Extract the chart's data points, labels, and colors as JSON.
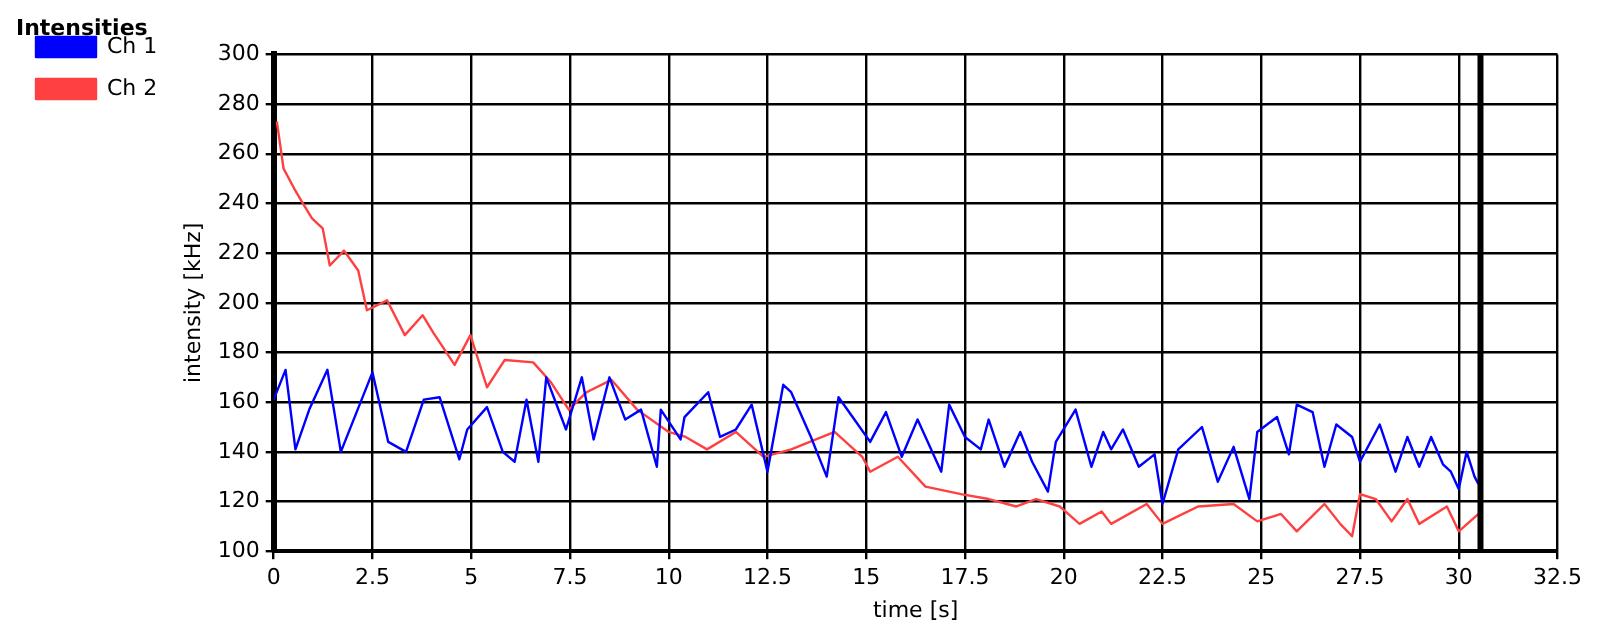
{
  "chart_data": {
    "type": "line",
    "title": "Intensities",
    "xlabel": "time [s]",
    "ylabel": "intensity [kHz]",
    "xlim": [
      0,
      32.5
    ],
    "xticks": [
      0,
      2.5,
      5,
      7.5,
      10,
      12.5,
      15,
      17.5,
      20,
      22.5,
      25,
      27.5,
      30,
      32.5
    ],
    "ylim": [
      100,
      300
    ],
    "yticks": [
      100,
      120,
      140,
      160,
      180,
      200,
      220,
      240,
      260,
      280,
      300
    ],
    "grid": true,
    "legend": "top left",
    "marker": "none",
    "line_style": "solid",
    "ref_lines": [
      {
        "axis": "x",
        "value": 30.55,
        "color": "#000000"
      }
    ],
    "series": [
      {
        "name": "Ch 1",
        "color": "#0000ff",
        "x": [
          0,
          0.3,
          0.55,
          0.9,
          1.36,
          1.7,
          2.5,
          2.9,
          3.35,
          3.8,
          4.2,
          4.7,
          4.9,
          5.4,
          5.8,
          6.1,
          6.4,
          6.7,
          6.9,
          7.4,
          7.8,
          8.1,
          8.5,
          8.9,
          9.3,
          9.7,
          9.8,
          10.3,
          10.4,
          11,
          11.3,
          11.7,
          12.1,
          12.5,
          12.9,
          13.1,
          13.6,
          14,
          14.3,
          14.7,
          15.1,
          15.5,
          15.9,
          16.3,
          16.9,
          17.1,
          17.5,
          17.9,
          18.1,
          18.5,
          18.9,
          19.2,
          19.6,
          19.8,
          20.3,
          20.7,
          21,
          21.2,
          21.5,
          21.9,
          22.3,
          22.5,
          22.9,
          23.5,
          23.9,
          24.3,
          24.7,
          24.9,
          25.4,
          25.7,
          25.9,
          26.3,
          26.6,
          26.9,
          27.3,
          27.5,
          28,
          28.4,
          28.7,
          29,
          29.3,
          29.6,
          29.8,
          30,
          30.2,
          30.4,
          30.5
        ],
        "values": [
          161,
          173,
          141,
          157,
          173,
          140,
          172,
          144,
          140,
          161,
          162,
          137,
          149,
          158,
          140,
          136,
          161,
          136,
          170,
          149,
          170,
          145,
          170,
          153,
          157,
          134,
          157,
          145,
          154,
          164,
          146,
          149,
          159,
          132,
          167,
          164,
          146,
          130,
          162,
          153,
          144,
          156,
          138,
          153,
          132,
          159,
          146,
          141,
          153,
          134,
          148,
          136,
          124,
          144,
          157,
          134,
          148,
          141,
          149,
          134,
          139,
          119,
          141,
          150,
          128,
          142,
          121,
          148,
          154,
          139,
          159,
          156,
          134,
          151,
          146,
          136,
          151,
          132,
          146,
          134,
          146,
          135,
          132,
          125,
          140,
          130,
          127
        ]
      },
      {
        "name": "Ch 2",
        "color": "#ff4040",
        "x": [
          0.08,
          0.25,
          0.52,
          0.7,
          0.97,
          1.24,
          1.42,
          1.78,
          2.14,
          2.36,
          2.87,
          3.32,
          3.77,
          4.04,
          4.58,
          4.98,
          5.4,
          5.85,
          6.57,
          7.02,
          7.47,
          7.92,
          8.55,
          9.2,
          10,
          10.43,
          10.97,
          11.7,
          12.4,
          13.1,
          14.2,
          14.9,
          15.1,
          15.8,
          16.5,
          17.4,
          18.1,
          18.8,
          19.3,
          19.9,
          20.4,
          20.96,
          21.2,
          22.1,
          22.5,
          23.4,
          24.3,
          24.9,
          25.5,
          25.9,
          26.6,
          27,
          27.3,
          27.5,
          27.9,
          28.3,
          28.7,
          29,
          29.7,
          30,
          30.5
        ],
        "values": [
          273,
          254,
          246,
          241,
          234,
          230,
          215,
          221,
          213,
          197,
          201,
          187,
          195,
          188,
          175,
          187,
          166,
          177,
          176,
          168,
          157,
          164,
          169,
          157,
          148,
          146,
          141,
          148,
          138,
          141,
          148,
          138,
          132,
          138,
          126,
          123,
          121,
          118,
          121,
          118,
          111,
          116,
          111,
          119,
          111,
          118,
          119,
          112,
          115,
          108,
          119,
          111,
          106,
          123,
          121,
          112,
          121,
          111,
          118,
          108,
          115
        ]
      }
    ]
  }
}
